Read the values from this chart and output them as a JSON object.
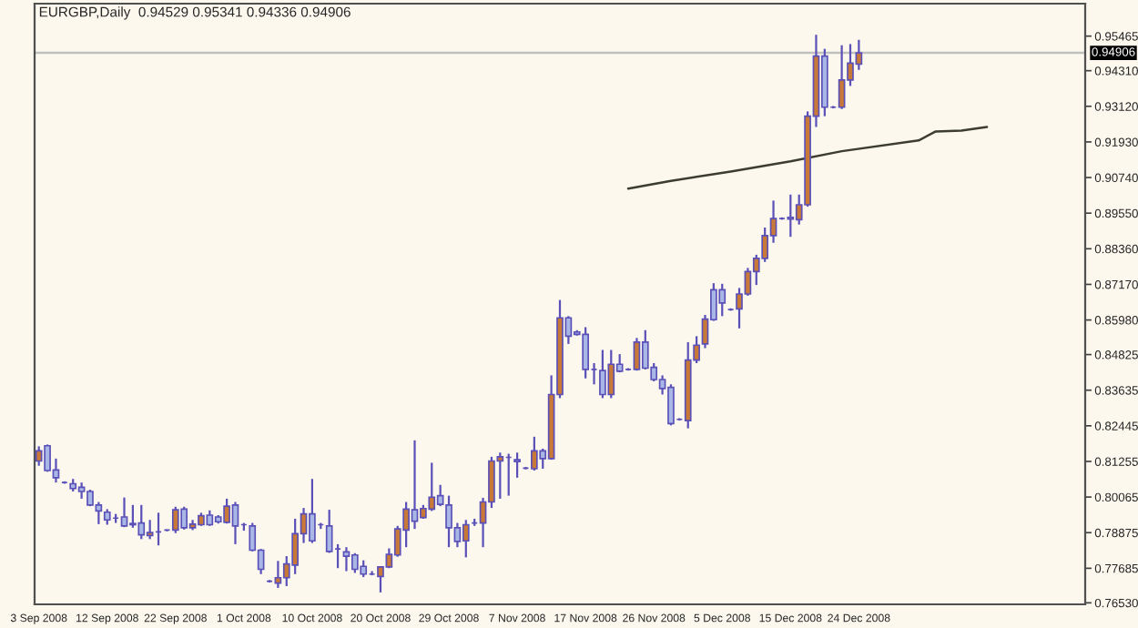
{
  "chart_data": {
    "type": "candlestick",
    "title": "EURGBP,Daily  0.94529 0.95341 0.94336 0.94906",
    "color": "#5a50b8",
    "categories": [
      "3 Sep 2008",
      null,
      null,
      null,
      null,
      null,
      null,
      null,
      "12 Sep 2008",
      null,
      null,
      null,
      null,
      null,
      null,
      null,
      "22 Sep 2008",
      null,
      null,
      null,
      null,
      null,
      null,
      null,
      "1 Oct 2008",
      null,
      null,
      null,
      null,
      null,
      null,
      null,
      "10 Oct 2008",
      null,
      null,
      null,
      null,
      null,
      null,
      null,
      "20 Oct 2008",
      null,
      null,
      null,
      null,
      null,
      null,
      null,
      "29 Oct 2008",
      null,
      null,
      null,
      null,
      null,
      null,
      null,
      "7 Nov 2008",
      null,
      null,
      null,
      null,
      null,
      null,
      null,
      "17 Nov 2008",
      null,
      null,
      null,
      null,
      null,
      null,
      null,
      "26 Nov 2008",
      null,
      null,
      null,
      null,
      null,
      null,
      null,
      "5 Dec 2008",
      null,
      null,
      null,
      null,
      null,
      null,
      null,
      "15 Dec 2008",
      null,
      null,
      null,
      null,
      null,
      null,
      null,
      "24 Dec 2008",
      null,
      null,
      null,
      null,
      null,
      null,
      null,
      null,
      null,
      null,
      null,
      null,
      null,
      null,
      null,
      null,
      null,
      null,
      null,
      null,
      null,
      null,
      null,
      null,
      null,
      null
    ],
    "ohlc": [
      [
        0.8127,
        0.8176,
        0.8111,
        0.8161
      ],
      [
        0.8178,
        0.8182,
        0.8091,
        0.8095
      ],
      [
        0.8097,
        0.8135,
        0.8055,
        0.8071
      ],
      [
        0.8055,
        0.8059,
        0.8051,
        0.8055
      ],
      [
        0.8051,
        0.8067,
        0.8025,
        0.8035
      ],
      [
        0.8039,
        0.8055,
        0.8001,
        0.8025
      ],
      [
        0.8025,
        0.8031,
        0.7976,
        0.798
      ],
      [
        0.798,
        0.799,
        0.7916,
        0.796
      ],
      [
        0.7956,
        0.7966,
        0.7914,
        0.793
      ],
      [
        0.7936,
        0.795,
        0.792,
        0.7936
      ],
      [
        0.794,
        0.8005,
        0.7906,
        0.791
      ],
      [
        0.7918,
        0.798,
        0.7904,
        0.7914
      ],
      [
        0.792,
        0.798,
        0.7866,
        0.788
      ],
      [
        0.7878,
        0.793,
        0.7866,
        0.7888
      ],
      [
        0.789,
        0.7954,
        0.7845,
        0.789
      ],
      [
        0.7896,
        0.7898,
        0.7892,
        0.7896
      ],
      [
        0.7896,
        0.7974,
        0.7886,
        0.7964
      ],
      [
        0.7966,
        0.7974,
        0.7898,
        0.7904
      ],
      [
        0.7904,
        0.793,
        0.7896,
        0.7916
      ],
      [
        0.7914,
        0.7954,
        0.791,
        0.7944
      ],
      [
        0.7946,
        0.7962,
        0.791,
        0.7914
      ],
      [
        0.794,
        0.7946,
        0.7918,
        0.7924
      ],
      [
        0.7922,
        0.8001,
        0.7918,
        0.7976
      ],
      [
        0.798,
        0.799,
        0.7849,
        0.791
      ],
      [
        0.7914,
        0.792,
        0.7894,
        0.7914
      ],
      [
        0.791,
        0.792,
        0.7825,
        0.7829
      ],
      [
        0.7829,
        0.7833,
        0.7749,
        0.7765
      ],
      [
        0.7725,
        0.7729,
        0.7721,
        0.7725
      ],
      [
        0.7719,
        0.7793,
        0.7703,
        0.7737
      ],
      [
        0.7737,
        0.7809,
        0.7709,
        0.7783
      ],
      [
        0.7779,
        0.7934,
        0.7749,
        0.7884
      ],
      [
        0.7884,
        0.797,
        0.7853,
        0.795
      ],
      [
        0.795,
        0.8067,
        0.7853,
        0.786
      ],
      [
        0.7914,
        0.792,
        0.79,
        0.7914
      ],
      [
        0.791,
        0.7964,
        0.782,
        0.7825
      ],
      [
        0.7833,
        0.7849,
        0.7769,
        0.7833
      ],
      [
        0.7823,
        0.7839,
        0.7759,
        0.7809
      ],
      [
        0.7813,
        0.7819,
        0.7753,
        0.7765
      ],
      [
        0.7775,
        0.7795,
        0.7739,
        0.7749
      ],
      [
        0.7749,
        0.7759,
        0.7745,
        0.7749
      ],
      [
        0.7741,
        0.7773,
        0.7688,
        0.7773
      ],
      [
        0.7773,
        0.7835,
        0.7769,
        0.7815
      ],
      [
        0.7813,
        0.791,
        0.7807,
        0.79
      ],
      [
        0.7896,
        0.799,
        0.7839,
        0.7966
      ],
      [
        0.7964,
        0.8196,
        0.79,
        0.7926
      ],
      [
        0.7938,
        0.798,
        0.7934,
        0.7968
      ],
      [
        0.7966,
        0.8121,
        0.796,
        0.8006
      ],
      [
        0.8011,
        0.8047,
        0.7976,
        0.7982
      ],
      [
        0.798,
        0.8011,
        0.7839,
        0.7904
      ],
      [
        0.7904,
        0.792,
        0.7839,
        0.7858
      ],
      [
        0.786,
        0.793,
        0.7805,
        0.7914
      ],
      [
        0.792,
        0.7934,
        0.791,
        0.792
      ],
      [
        0.792,
        0.8004,
        0.7839,
        0.799
      ],
      [
        0.799,
        0.8141,
        0.797,
        0.8127
      ],
      [
        0.8127,
        0.8155,
        0.8001,
        0.8141
      ],
      [
        0.8139,
        0.8151,
        0.8011,
        0.8139
      ],
      [
        0.8131,
        0.8155,
        0.8071,
        0.8125
      ],
      [
        0.8103,
        0.8107,
        0.8099,
        0.8103
      ],
      [
        0.8101,
        0.8208,
        0.8095,
        0.8161
      ],
      [
        0.8161,
        0.8168,
        0.8101,
        0.8135
      ],
      [
        0.8135,
        0.8413,
        0.8131,
        0.8349
      ],
      [
        0.8349,
        0.8665,
        0.8337,
        0.8605
      ],
      [
        0.8605,
        0.8611,
        0.8518,
        0.8544
      ],
      [
        0.8558,
        0.8564,
        0.8546,
        0.855
      ],
      [
        0.855,
        0.8574,
        0.8403,
        0.8433
      ],
      [
        0.8433,
        0.8454,
        0.8383,
        0.8433
      ],
      [
        0.8429,
        0.8498,
        0.8337,
        0.8349
      ],
      [
        0.8349,
        0.8498,
        0.8337,
        0.845
      ],
      [
        0.845,
        0.8484,
        0.8423,
        0.8427
      ],
      [
        0.8433,
        0.8437,
        0.8429,
        0.8433
      ],
      [
        0.8433,
        0.8538,
        0.8429,
        0.8524
      ],
      [
        0.8524,
        0.8564,
        0.8433,
        0.8437
      ],
      [
        0.844,
        0.8454,
        0.8393,
        0.8399
      ],
      [
        0.8399,
        0.8413,
        0.8349,
        0.8369
      ],
      [
        0.8373,
        0.8383,
        0.8246,
        0.8252
      ],
      [
        0.8266,
        0.827,
        0.8262,
        0.8266
      ],
      [
        0.8262,
        0.8524,
        0.8236,
        0.8464
      ],
      [
        0.8464,
        0.8544,
        0.8454,
        0.8514
      ],
      [
        0.8518,
        0.8615,
        0.8504,
        0.8601
      ],
      [
        0.8699,
        0.8721,
        0.8595,
        0.8599
      ],
      [
        0.8699,
        0.8719,
        0.8611,
        0.8655
      ],
      [
        0.8633,
        0.8637,
        0.8629,
        0.8633
      ],
      [
        0.8635,
        0.8705,
        0.857,
        0.8685
      ],
      [
        0.8685,
        0.8772,
        0.8679,
        0.876
      ],
      [
        0.876,
        0.8816,
        0.8715,
        0.8804
      ],
      [
        0.8804,
        0.8907,
        0.8792,
        0.888
      ],
      [
        0.888,
        0.8997,
        0.8856,
        0.8937
      ],
      [
        0.8937,
        0.8941,
        0.8933,
        0.8937
      ],
      [
        0.8941,
        0.9017,
        0.8876,
        0.8935
      ],
      [
        0.8933,
        0.9017,
        0.8917,
        0.8983
      ],
      [
        0.8983,
        0.9295,
        0.8977,
        0.9279
      ],
      [
        0.9279,
        0.9551,
        0.9243,
        0.948
      ],
      [
        0.948,
        0.9504,
        0.9279,
        0.9309
      ],
      [
        0.9309,
        0.9313,
        0.9305,
        0.9309
      ],
      [
        0.9309,
        0.9516,
        0.9303,
        0.94
      ],
      [
        0.94,
        0.952,
        0.938,
        0.9456
      ],
      [
        0.94529,
        0.95341,
        0.94336,
        0.94906
      ],
      null,
      null,
      null,
      null,
      null,
      null,
      null,
      null,
      null,
      null,
      null,
      null,
      null,
      null,
      null,
      null,
      null,
      null,
      null,
      null,
      null,
      null,
      null,
      null,
      null,
      null
    ],
    "colors": [
      "#c87837",
      "#a9b7e6",
      "#a9b7e6",
      "#5a50b8",
      "#a9b7e6",
      "#a9b7e6",
      "#a9b7e6",
      "#a9b7e6",
      "#a9b7e6",
      "#5a50b8",
      "#a9b7e6",
      "#a9b7e6",
      "#a9b7e6",
      "#c87837",
      "#5a50b8",
      "#5a50b8",
      "#c87837",
      "#a9b7e6",
      "#c87837",
      "#c87837",
      "#a9b7e6",
      "#a9b7e6",
      "#c87837",
      "#a9b7e6",
      "#5a50b8",
      "#a9b7e6",
      "#a9b7e6",
      "#5a50b8",
      "#c87837",
      "#c87837",
      "#c87837",
      "#c87837",
      "#a9b7e6",
      "#5a50b8",
      "#a9b7e6",
      "#5a50b8",
      "#a9b7e6",
      "#a9b7e6",
      "#a9b7e6",
      "#5a50b8",
      "#c87837",
      "#c87837",
      "#c87837",
      "#c87837",
      "#a9b7e6",
      "#c87837",
      "#c87837",
      "#a9b7e6",
      "#a9b7e6",
      "#a9b7e6",
      "#c87837",
      "#5a50b8",
      "#c87837",
      "#c87837",
      "#c87837",
      "#5a50b8",
      "#a9b7e6",
      "#5a50b8",
      "#c87837",
      "#a9b7e6",
      "#c87837",
      "#c87837",
      "#a9b7e6",
      "#a9b7e6",
      "#a9b7e6",
      "#5a50b8",
      "#a9b7e6",
      "#c87837",
      "#a9b7e6",
      "#5a50b8",
      "#c87837",
      "#a9b7e6",
      "#a9b7e6",
      "#a9b7e6",
      "#a9b7e6",
      "#5a50b8",
      "#c87837",
      "#c87837",
      "#c87837",
      "#a9b7e6",
      "#a9b7e6",
      "#5a50b8",
      "#c87837",
      "#c87837",
      "#c87837",
      "#c87837",
      "#c87837",
      "#5a50b8",
      "#a9b7e6",
      "#c87837",
      "#c87837",
      "#c87837",
      "#a9b7e6",
      "#5a50b8",
      "#c87837",
      "#c87837",
      "#c87837",
      null,
      null,
      null,
      null,
      null,
      null,
      null,
      null,
      null,
      null,
      null,
      null,
      null,
      null,
      null,
      null,
      null,
      null,
      null,
      null,
      null,
      null,
      null,
      null,
      null,
      null
    ],
    "series": [
      {
        "type": "line",
        "color": "#3c3c30",
        "values": [
          null,
          null,
          null,
          null,
          null,
          null,
          null,
          null,
          null,
          null,
          null,
          null,
          null,
          null,
          null,
          null,
          null,
          null,
          null,
          null,
          null,
          null,
          null,
          null,
          null,
          null,
          null,
          null,
          null,
          null,
          null,
          null,
          null,
          null,
          null,
          null,
          null,
          null,
          null,
          null,
          null,
          null,
          null,
          null,
          null,
          null,
          null,
          null,
          null,
          null,
          null,
          null,
          null,
          null,
          null,
          null,
          null,
          null,
          null,
          null,
          null,
          null,
          null,
          null,
          null,
          null,
          null,
          null,
          null,
          0.9037,
          null,
          null,
          null,
          null,
          0.9063,
          null,
          null,
          null,
          null,
          null,
          null,
          0.9094,
          null,
          null,
          null,
          null,
          null,
          null,
          0.9128,
          null,
          null,
          null,
          null,
          null,
          0.9162,
          null,
          null,
          null,
          null,
          null,
          null,
          null,
          null,
          0.9198,
          null,
          0.9228,
          null,
          null,
          0.9231,
          null,
          null,
          0.9243,
          null,
          null,
          null,
          null,
          null,
          null,
          null,
          null,
          null,
          null,
          null
        ]
      }
    ],
    "ref_lines": [
      {
        "axis": "y",
        "value": 0.94906,
        "label": "0.94906",
        "color": "#c0c0c0"
      }
    ],
    "ylim": [
      0.7648,
      0.9655
    ],
    "yticks": [
      0.95465,
      {
        "value": 0.9431,
        "label": "0.94310"
      },
      {
        "value": 0.9312,
        "label": "0.93120"
      },
      {
        "value": 0.9193,
        "label": "0.91930"
      },
      {
        "value": 0.9074,
        "label": "0.90740"
      },
      {
        "value": 0.8955,
        "label": "0.89550"
      },
      {
        "value": 0.8836,
        "label": "0.88360"
      },
      {
        "value": 0.8717,
        "label": "0.87170"
      },
      {
        "value": 0.8598,
        "label": "0.85980"
      },
      0.84825,
      0.83635,
      0.82445,
      0.81255,
      0.80065,
      0.78875,
      0.77685,
      {
        "value": 0.7653,
        "label": "0.76530"
      }
    ]
  }
}
